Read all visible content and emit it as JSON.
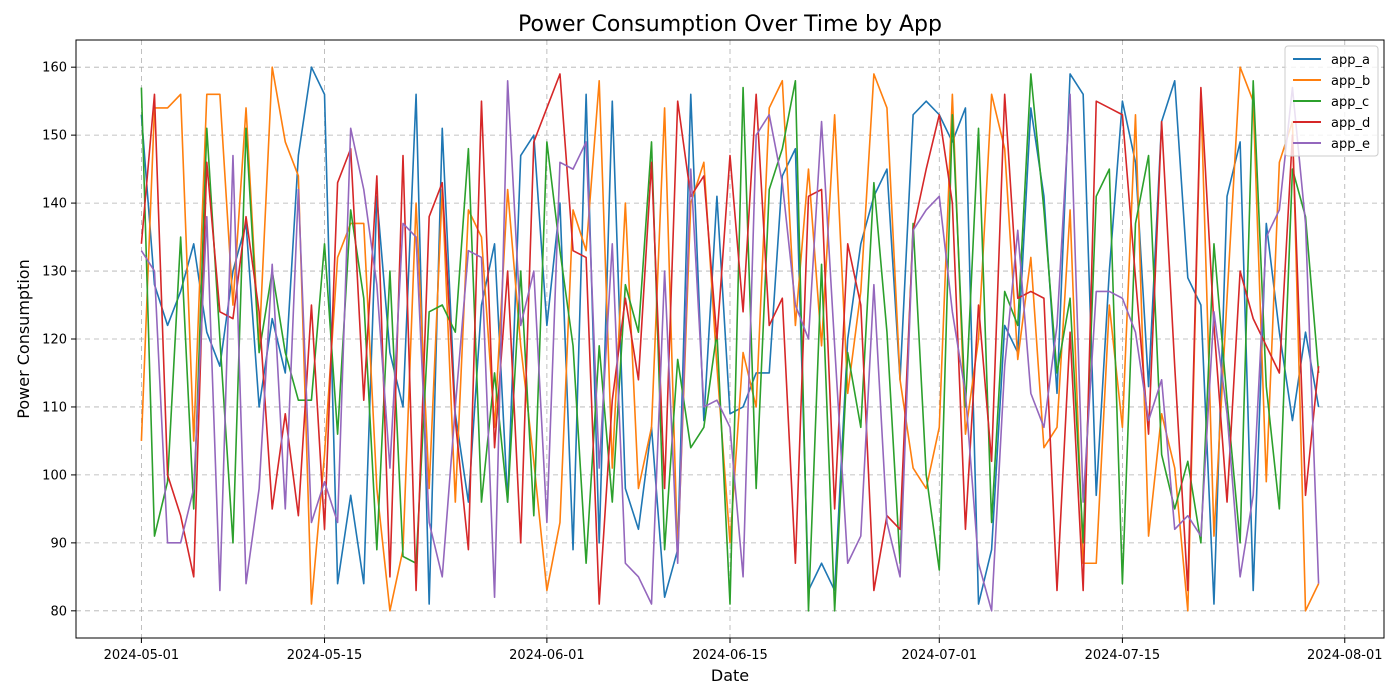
{
  "chart_data": {
    "type": "line",
    "title": "Power Consumption Over Time by App",
    "xlabel": "Date",
    "ylabel": "Power Consumption",
    "x_start": "2024-05-01",
    "x_end": "2024-07-30",
    "xlim": [
      "2024-04-26",
      "2024-08-04"
    ],
    "ylim": [
      76,
      164
    ],
    "x_ticks": [
      "2024-05-01",
      "2024-05-15",
      "2024-06-01",
      "2024-06-15",
      "2024-07-01",
      "2024-07-15",
      "2024-08-01"
    ],
    "y_ticks": [
      80,
      90,
      100,
      110,
      120,
      130,
      140,
      150,
      160
    ],
    "grid": true,
    "legend_position": "top-right",
    "series": [
      {
        "name": "app_a",
        "color": "#1f77b4",
        "values": [
          153,
          128,
          122,
          127,
          134,
          121,
          116,
          130,
          137,
          110,
          123,
          115,
          147,
          160,
          156,
          84,
          97,
          84,
          141,
          118,
          110,
          156,
          81,
          151,
          109,
          96,
          125,
          134,
          96,
          147,
          150,
          122,
          140,
          89,
          156,
          90,
          155,
          98,
          92,
          107,
          82,
          89,
          156,
          108,
          141,
          109,
          110,
          115,
          115,
          144,
          148,
          83,
          87,
          83,
          120,
          134,
          141,
          145,
          114,
          153,
          155,
          153,
          149,
          154,
          81,
          89,
          122,
          118,
          154,
          141,
          112,
          159,
          156,
          97,
          130,
          155,
          146,
          113,
          152,
          158,
          129,
          125,
          81,
          141,
          149,
          83,
          137,
          121,
          108,
          121,
          110
        ]
      },
      {
        "name": "app_b",
        "color": "#ff7f0e",
        "values": [
          105,
          154,
          154,
          156,
          105,
          156,
          156,
          125,
          154,
          119,
          160,
          149,
          144,
          81,
          103,
          132,
          137,
          137,
          98,
          80,
          89,
          140,
          98,
          142,
          96,
          139,
          135,
          107,
          142,
          119,
          102,
          83,
          93,
          139,
          133,
          158,
          101,
          140,
          98,
          107,
          154,
          88,
          140,
          146,
          116,
          90,
          118,
          110,
          154,
          158,
          122,
          145,
          119,
          153,
          112,
          127,
          159,
          154,
          114,
          101,
          98,
          107,
          156,
          106,
          120,
          156,
          148,
          117,
          132,
          104,
          107,
          139,
          87,
          87,
          125,
          107,
          153,
          91,
          109,
          101,
          80,
          156,
          91,
          126,
          160,
          155,
          99,
          146,
          152,
          80,
          84
        ]
      },
      {
        "name": "app_c",
        "color": "#2ca02c",
        "values": [
          157,
          91,
          99,
          135,
          95,
          151,
          120,
          90,
          151,
          118,
          130,
          118,
          111,
          111,
          134,
          106,
          139,
          126,
          89,
          130,
          88,
          87,
          124,
          125,
          121,
          148,
          96,
          115,
          96,
          130,
          94,
          149,
          133,
          119,
          87,
          119,
          96,
          128,
          121,
          149,
          89,
          117,
          104,
          107,
          121,
          81,
          157,
          98,
          142,
          148,
          158,
          80,
          131,
          80,
          118,
          107,
          143,
          121,
          87,
          137,
          100,
          86,
          153,
          110,
          151,
          93,
          127,
          122,
          159,
          139,
          115,
          126,
          90,
          141,
          145,
          84,
          137,
          147,
          103,
          95,
          102,
          90,
          134,
          111,
          90,
          158,
          113,
          95,
          145,
          138,
          115
        ]
      },
      {
        "name": "app_d",
        "color": "#d62728",
        "values": [
          134,
          156,
          100,
          94,
          85,
          146,
          124,
          123,
          138,
          124,
          95,
          109,
          94,
          125,
          92,
          143,
          148,
          111,
          144,
          85,
          147,
          83,
          138,
          143,
          108,
          89,
          155,
          104,
          130,
          90,
          149,
          154,
          159,
          133,
          132,
          81,
          111,
          126,
          114,
          146,
          98,
          155,
          141,
          144,
          120,
          147,
          124,
          156,
          122,
          126,
          87,
          141,
          142,
          95,
          134,
          125,
          83,
          94,
          92,
          136,
          145,
          153,
          140,
          92,
          125,
          102,
          156,
          126,
          127,
          126,
          83,
          121,
          83,
          155,
          154,
          153,
          129,
          106,
          152,
          116,
          83,
          157,
          122,
          96,
          130,
          123,
          119,
          115,
          150,
          97,
          116
        ]
      },
      {
        "name": "app_e",
        "color": "#9467bd",
        "values": [
          133,
          130,
          90,
          90,
          98,
          138,
          83,
          147,
          84,
          98,
          131,
          95,
          142,
          93,
          99,
          93,
          151,
          142,
          128,
          101,
          137,
          135,
          93,
          85,
          110,
          133,
          132,
          82,
          158,
          122,
          130,
          93,
          146,
          145,
          149,
          101,
          134,
          87,
          85,
          81,
          130,
          87,
          145,
          110,
          111,
          107,
          85,
          150,
          153,
          143,
          125,
          120,
          152,
          119,
          87,
          91,
          128,
          93,
          85,
          136,
          139,
          141,
          124,
          112,
          87,
          80,
          116,
          136,
          112,
          107,
          122,
          156,
          96,
          127,
          127,
          126,
          121,
          108,
          114,
          92,
          94,
          91,
          124,
          109,
          85,
          97,
          135,
          139,
          157,
          137,
          84
        ]
      }
    ]
  }
}
